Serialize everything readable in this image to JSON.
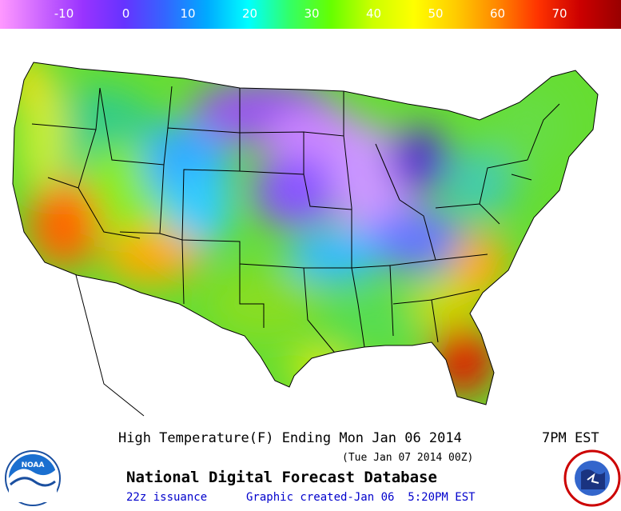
{
  "legend": {
    "ticks": [
      "-10",
      "0",
      "10",
      "20",
      "30",
      "40",
      "50",
      "60",
      "70"
    ],
    "gradient_stops": [
      "#ff99ff",
      "#cc66ff",
      "#9933ff",
      "#6633ff",
      "#3366ff",
      "#00aaff",
      "#00ffff",
      "#33ff66",
      "#66ff00",
      "#ccff00",
      "#ffff00",
      "#ffcc00",
      "#ff8800",
      "#ff3300",
      "#cc0000",
      "#990000"
    ]
  },
  "map": {
    "projection": "Lambert conformal (CONUS)",
    "temperature_scale_units": "F",
    "regions": [
      {
        "area": "Pacific coast / California",
        "temp_f": 60
      },
      {
        "area": "Southern California / Arizona",
        "temp_f": 68
      },
      {
        "area": "Great Basin",
        "temp_f": 45
      },
      {
        "area": "Wyoming / Colorado Rockies",
        "temp_f": 15
      },
      {
        "area": "Northern Plains / Minnesota",
        "temp_f": -5
      },
      {
        "area": "Upper Michigan / Great Lakes",
        "temp_f": -10
      },
      {
        "area": "Central Plains",
        "temp_f": 20
      },
      {
        "area": "Texas",
        "temp_f": 42
      },
      {
        "area": "Gulf Coast",
        "temp_f": 48
      },
      {
        "area": "Carolinas coast",
        "temp_f": 62
      },
      {
        "area": "Florida peninsula",
        "temp_f": 75
      },
      {
        "area": "Northeast / New England",
        "temp_f": 45
      }
    ]
  },
  "footer": {
    "title": "High Temperature(F) Ending Mon Jan 06 2014",
    "time": "7PM EST",
    "utc_time": "(Tue Jan 07 2014 00Z)",
    "database": "National Digital Forecast Database",
    "issuance": "22z issuance",
    "created": "Graphic created-Jan 06  5:20PM EST"
  },
  "logos": {
    "noaa": {
      "text": "NOAA",
      "icon": "noaa-logo-icon"
    },
    "nws": {
      "text": "NATIONAL WEATHER SERVICE",
      "icon": "nws-logo-icon"
    }
  }
}
